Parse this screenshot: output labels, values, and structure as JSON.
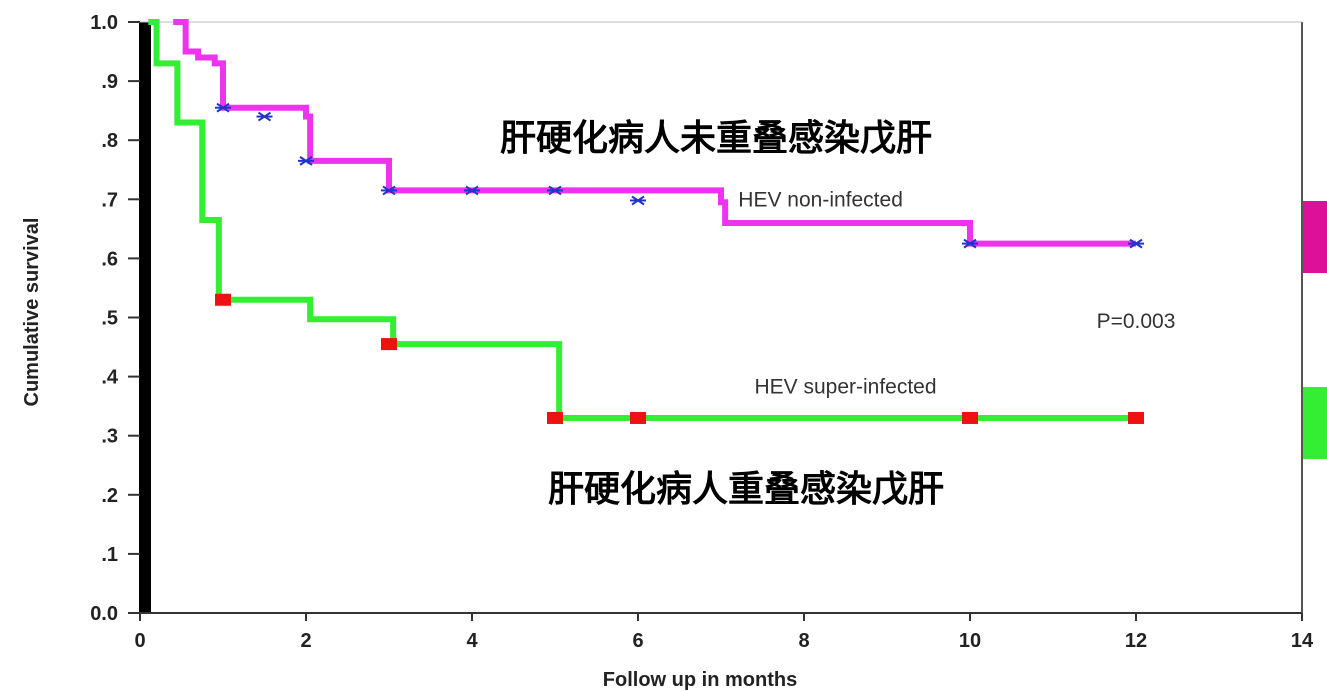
{
  "chart_data": {
    "type": "line",
    "xlabel": "Follow up in months",
    "ylabel": "Cumulative survival",
    "xlim": [
      0,
      14
    ],
    "ylim": [
      0,
      1.0
    ],
    "x_ticks": [
      "0",
      "2",
      "4",
      "6",
      "8",
      "10",
      "12",
      "14"
    ],
    "y_ticks": [
      "0.0",
      ".1",
      ".2",
      ".3",
      ".4",
      ".5",
      ".6",
      ".7",
      ".8",
      ".9",
      "1.0"
    ],
    "series": [
      {
        "name": "HEV non-infected",
        "color": "#ee33ee",
        "marker_color": "#2233cc",
        "marker": "x",
        "steps": [
          [
            0.4,
            1.0
          ],
          [
            0.55,
            0.95
          ],
          [
            0.7,
            0.94
          ],
          [
            0.9,
            0.93
          ],
          [
            1.0,
            0.855
          ],
          [
            2.0,
            0.84
          ],
          [
            2.05,
            0.765
          ],
          [
            3.0,
            0.715
          ],
          [
            7.0,
            0.695
          ],
          [
            7.05,
            0.66
          ],
          [
            10.0,
            0.625
          ],
          [
            12.0,
            0.625
          ]
        ],
        "censored": [
          [
            1.0,
            0.855
          ],
          [
            1.5,
            0.84
          ],
          [
            2.0,
            0.765
          ],
          [
            3.0,
            0.715
          ],
          [
            4.0,
            0.715
          ],
          [
            5.0,
            0.715
          ],
          [
            6.0,
            0.698
          ],
          [
            10.0,
            0.625
          ],
          [
            12.0,
            0.625
          ]
        ]
      },
      {
        "name": "HEV super-infected",
        "color": "#33ee33",
        "marker_color": "#ee1111",
        "marker": "square",
        "steps": [
          [
            0.1,
            1.0
          ],
          [
            0.2,
            0.93
          ],
          [
            0.4,
            0.93
          ],
          [
            0.45,
            0.83
          ],
          [
            0.7,
            0.83
          ],
          [
            0.75,
            0.665
          ],
          [
            0.9,
            0.665
          ],
          [
            0.95,
            0.53
          ],
          [
            2.0,
            0.53
          ],
          [
            2.05,
            0.497
          ],
          [
            3.0,
            0.497
          ],
          [
            3.05,
            0.455
          ],
          [
            5.0,
            0.455
          ],
          [
            5.05,
            0.33
          ],
          [
            12.0,
            0.33
          ]
        ],
        "censored": [
          [
            1.0,
            0.53
          ],
          [
            3.0,
            0.455
          ],
          [
            5.0,
            0.33
          ],
          [
            6.0,
            0.33
          ],
          [
            10.0,
            0.33
          ],
          [
            12.0,
            0.33
          ]
        ]
      }
    ],
    "annotations": [
      {
        "text": "HEV non-infected",
        "x": 8.2,
        "y": 0.7
      },
      {
        "text": "HEV super-infected",
        "x": 8.5,
        "y": 0.383
      },
      {
        "text": "P=0.003",
        "x": 12.0,
        "y": 0.494
      }
    ]
  },
  "labels": {
    "non_infected_cn": "肝硬化病人未重叠感染戊肝",
    "super_infected_cn": "肝硬化病人重叠感染戊肝"
  },
  "swatches": {
    "magenta": "#dd1199",
    "green": "#33ee33"
  }
}
